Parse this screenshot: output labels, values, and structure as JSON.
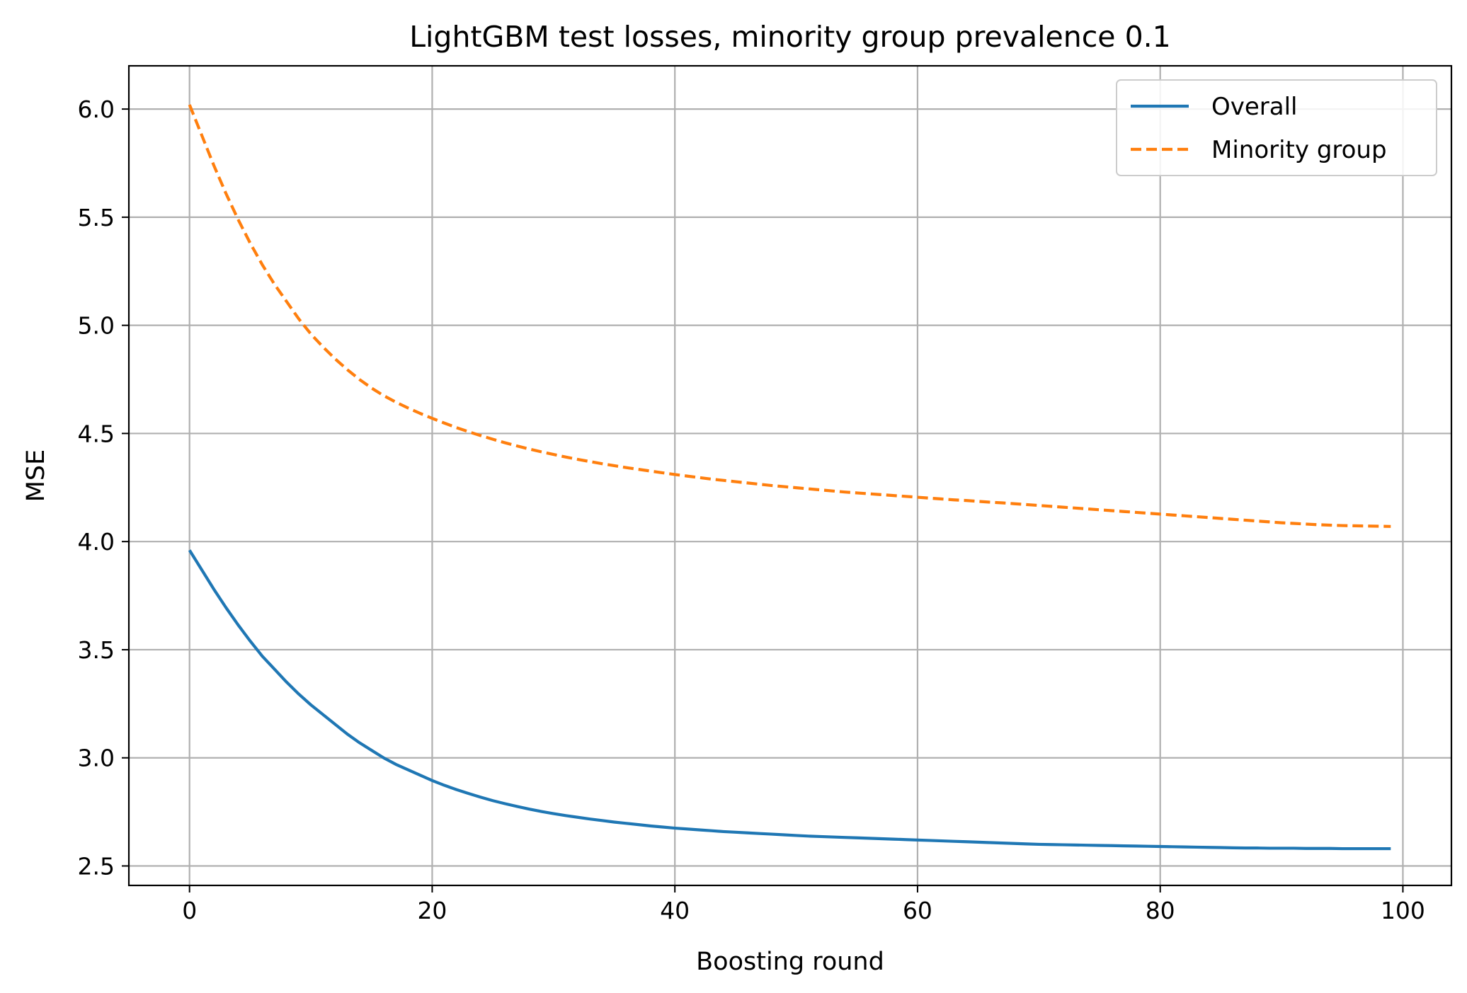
{
  "chart_data": {
    "type": "line",
    "title": "LightGBM test losses, minority group prevalence 0.1",
    "xlabel": "Boosting round",
    "ylabel": "MSE",
    "xlim": [
      -5,
      104
    ],
    "ylim": [
      2.41,
      6.2
    ],
    "xticks": [
      0,
      20,
      40,
      60,
      80,
      100
    ],
    "xtick_labels": [
      "0",
      "20",
      "40",
      "60",
      "80",
      "100"
    ],
    "yticks": [
      2.5,
      3.0,
      3.5,
      4.0,
      4.5,
      5.0,
      5.5,
      6.0
    ],
    "ytick_labels": [
      "2.5",
      "3.0",
      "3.5",
      "4.0",
      "4.5",
      "5.0",
      "5.5",
      "6.0"
    ],
    "grid": true,
    "legend_position": "top-right",
    "x": [
      0,
      1,
      2,
      3,
      4,
      5,
      6,
      7,
      8,
      9,
      10,
      11,
      12,
      13,
      14,
      15,
      16,
      17,
      18,
      19,
      20,
      21,
      22,
      23,
      24,
      25,
      26,
      27,
      28,
      29,
      30,
      31,
      32,
      33,
      34,
      35,
      36,
      37,
      38,
      39,
      40,
      41,
      42,
      43,
      44,
      45,
      46,
      47,
      48,
      49,
      50,
      51,
      52,
      53,
      54,
      55,
      56,
      57,
      58,
      59,
      60,
      61,
      62,
      63,
      64,
      65,
      66,
      67,
      68,
      69,
      70,
      71,
      72,
      73,
      74,
      75,
      76,
      77,
      78,
      79,
      80,
      81,
      82,
      83,
      84,
      85,
      86,
      87,
      88,
      89,
      90,
      91,
      92,
      93,
      94,
      95,
      96,
      97,
      98,
      99
    ],
    "series": [
      {
        "name": "Overall",
        "color": "#1f77b4",
        "style": "solid",
        "values": [
          3.96,
          3.87,
          3.78,
          3.695,
          3.615,
          3.54,
          3.47,
          3.41,
          3.35,
          3.295,
          3.245,
          3.2,
          3.155,
          3.11,
          3.07,
          3.035,
          3.0,
          2.97,
          2.945,
          2.92,
          2.895,
          2.873,
          2.853,
          2.835,
          2.818,
          2.802,
          2.788,
          2.775,
          2.763,
          2.752,
          2.742,
          2.733,
          2.725,
          2.717,
          2.71,
          2.703,
          2.697,
          2.691,
          2.685,
          2.68,
          2.675,
          2.671,
          2.667,
          2.663,
          2.659,
          2.656,
          2.653,
          2.65,
          2.647,
          2.644,
          2.641,
          2.638,
          2.636,
          2.634,
          2.632,
          2.63,
          2.628,
          2.626,
          2.624,
          2.622,
          2.62,
          2.618,
          2.616,
          2.614,
          2.612,
          2.61,
          2.608,
          2.606,
          2.604,
          2.602,
          2.6,
          2.599,
          2.598,
          2.597,
          2.596,
          2.595,
          2.594,
          2.593,
          2.592,
          2.591,
          2.59,
          2.589,
          2.588,
          2.587,
          2.586,
          2.585,
          2.584,
          2.583,
          2.583,
          2.582,
          2.582,
          2.582,
          2.581,
          2.581,
          2.581,
          2.58,
          2.58,
          2.58,
          2.58,
          2.58
        ]
      },
      {
        "name": "Minority group",
        "color": "#ff7f0e",
        "style": "dashed",
        "values": [
          6.02,
          5.88,
          5.74,
          5.61,
          5.49,
          5.38,
          5.28,
          5.19,
          5.11,
          5.03,
          4.96,
          4.9,
          4.845,
          4.795,
          4.75,
          4.71,
          4.675,
          4.645,
          4.618,
          4.593,
          4.57,
          4.548,
          4.527,
          4.508,
          4.49,
          4.473,
          4.457,
          4.442,
          4.428,
          4.415,
          4.403,
          4.391,
          4.38,
          4.37,
          4.36,
          4.351,
          4.342,
          4.334,
          4.326,
          4.318,
          4.31,
          4.303,
          4.296,
          4.289,
          4.283,
          4.277,
          4.271,
          4.265,
          4.259,
          4.254,
          4.249,
          4.244,
          4.239,
          4.234,
          4.229,
          4.225,
          4.221,
          4.217,
          4.213,
          4.209,
          4.205,
          4.201,
          4.197,
          4.193,
          4.19,
          4.186,
          4.182,
          4.179,
          4.175,
          4.171,
          4.167,
          4.163,
          4.159,
          4.155,
          4.151,
          4.147,
          4.143,
          4.139,
          4.135,
          4.131,
          4.127,
          4.123,
          4.119,
          4.115,
          4.111,
          4.107,
          4.103,
          4.099,
          4.095,
          4.091,
          4.087,
          4.084,
          4.081,
          4.078,
          4.076,
          4.074,
          4.073,
          4.072,
          4.071,
          4.07
        ]
      }
    ]
  }
}
